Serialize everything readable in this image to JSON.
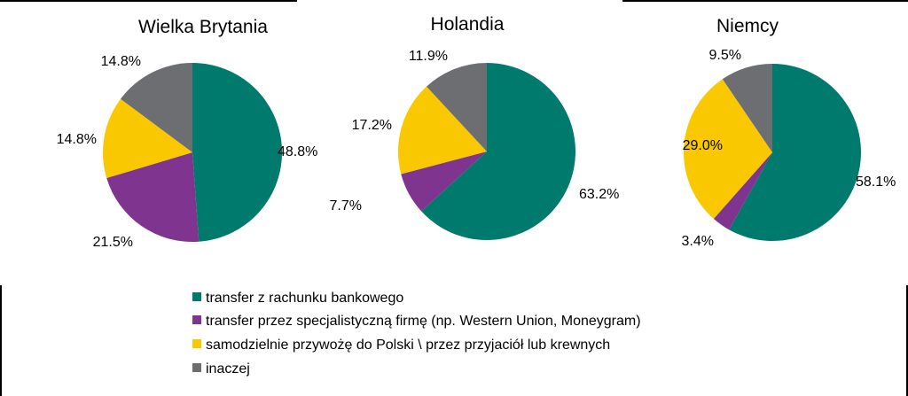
{
  "chart_data": [
    {
      "type": "pie",
      "title": "Wielka Brytania",
      "labels": [
        "transfer z rachunku bankowego",
        "transfer przez specjalistyczną firmę (np. Western Union, Moneygram)",
        "samodzielnie przywożę do Polski \\ przez przyjaciół lub krewnych",
        "inaczej"
      ],
      "values": [
        48.8,
        21.5,
        14.8,
        14.8
      ],
      "value_labels": [
        "48.8%",
        "21.5%",
        "14.8%",
        "14.8%"
      ]
    },
    {
      "type": "pie",
      "title": "Holandia",
      "labels": [
        "transfer z rachunku bankowego",
        "transfer przez specjalistyczną firmę (np. Western Union, Moneygram)",
        "samodzielnie przywożę do Polski \\ przez przyjaciół lub krewnych",
        "inaczej"
      ],
      "values": [
        63.2,
        7.7,
        17.2,
        11.9
      ],
      "value_labels": [
        "63.2%",
        "7.7%",
        "17.2%",
        "11.9%"
      ]
    },
    {
      "type": "pie",
      "title": "Niemcy",
      "labels": [
        "transfer z rachunku bankowego",
        "transfer przez specjalistyczną firmę (np. Western Union, Moneygram)",
        "samodzielnie przywożę do Polski \\ przez przyjaciół lub krewnych",
        "inaczej"
      ],
      "values": [
        58.1,
        3.4,
        29.0,
        9.5
      ],
      "value_labels": [
        "58.1%",
        "3.4%",
        "29.0%",
        "9.5%"
      ]
    }
  ],
  "legend": {
    "placement": "bottom",
    "items": [
      {
        "label": "transfer z rachunku bankowego",
        "color": "#007a6c"
      },
      {
        "label": "transfer przez specjalistyczną firmę (np. Western Union, Moneygram)",
        "color": "#7f3490"
      },
      {
        "label": "samodzielnie przywożę do Polski \\ przez przyjaciół lub krewnych",
        "color": "#f9c800"
      },
      {
        "label": "inaczej",
        "color": "#6d6e71"
      }
    ]
  },
  "colors": [
    "#007a6c",
    "#7f3490",
    "#f9c800",
    "#6d6e71"
  ]
}
